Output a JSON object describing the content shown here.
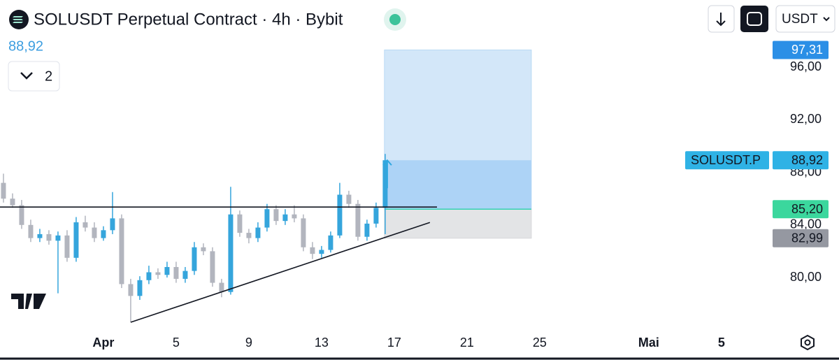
{
  "header": {
    "title": "SOLUSDT Perpetual Contract · 4h · Bybit",
    "price": "88,92",
    "indicators": "2",
    "currency": "USDT"
  },
  "chart_data": {
    "type": "candlestick",
    "x": [
      -4.5,
      -4,
      -3.5,
      -3,
      -2.5,
      -2,
      -1.5,
      -1,
      -0.5,
      0,
      0.5,
      1,
      1.5,
      2,
      2.5,
      3,
      3.5,
      4,
      4.5,
      5,
      5.5,
      6,
      6.5,
      7,
      7.5,
      8,
      8.5,
      9,
      9.5,
      10,
      10.5,
      11,
      11.5,
      12,
      12.5,
      13,
      13.5,
      14,
      14.5,
      15,
      15.5,
      16,
      16.5
    ],
    "open": [
      87.2,
      86.0,
      85.5,
      84.0,
      83.0,
      83.3,
      82.8,
      83.2,
      81.5,
      84.2,
      83.8,
      83.0,
      83.6,
      84.5,
      79.5,
      78.6,
      79.8,
      80.4,
      80.2,
      80.8,
      79.9,
      80.5,
      82.3,
      82.0,
      79.6,
      78.9,
      84.8,
      83.4,
      83.0,
      83.8,
      85.2,
      84.3,
      84.8,
      84.5,
      82.3,
      81.8,
      82.1,
      83.2,
      86.3,
      85.6,
      83.1,
      84.1,
      85.3
    ],
    "high": [
      87.9,
      86.4,
      85.9,
      84.4,
      83.7,
      83.6,
      83.5,
      83.6,
      84.6,
      84.7,
      84.2,
      83.9,
      86.5,
      84.8,
      79.9,
      80.1,
      80.9,
      80.7,
      81.2,
      81.2,
      80.8,
      82.7,
      82.6,
      82.3,
      79.9,
      86.9,
      85.1,
      83.7,
      84.2,
      85.6,
      85.5,
      85.2,
      85.5,
      84.8,
      82.7,
      82.4,
      83.5,
      87.2,
      86.6,
      85.9,
      84.4,
      85.7,
      89.4
    ],
    "low": [
      85.7,
      85.3,
      83.7,
      82.7,
      82.7,
      82.5,
      78.8,
      81.2,
      81.2,
      83.5,
      82.7,
      82.8,
      83.3,
      79.2,
      76.6,
      78.3,
      79.5,
      79.9,
      80.0,
      79.6,
      79.6,
      80.2,
      81.7,
      79.3,
      78.5,
      78.7,
      83.1,
      82.6,
      82.7,
      83.5,
      84.0,
      84.0,
      84.2,
      82.0,
      81.4,
      81.5,
      81.9,
      83.0,
      85.3,
      82.8,
      82.8,
      83.8,
      83.3
    ],
    "close": [
      86.0,
      85.5,
      84.0,
      83.0,
      83.3,
      82.8,
      83.2,
      81.5,
      84.2,
      83.8,
      83.0,
      83.6,
      84.5,
      79.5,
      78.6,
      79.8,
      80.4,
      80.2,
      80.8,
      79.9,
      80.5,
      82.3,
      82.0,
      79.6,
      78.9,
      84.8,
      83.4,
      83.0,
      83.8,
      85.2,
      84.3,
      84.8,
      84.5,
      82.3,
      81.8,
      82.1,
      83.2,
      86.3,
      85.6,
      83.1,
      84.1,
      85.3,
      88.92
    ],
    "up_color": "#35a5dc",
    "down_color": "#b2b5be",
    "xlim": [
      -4.69,
      37.62
    ],
    "ylim": [
      76.12,
      98.45
    ],
    "xticks": [
      {
        "value": 1,
        "label": "Apr"
      },
      5,
      9,
      13,
      17,
      21,
      25,
      {
        "value": 31,
        "label": "Mai"
      },
      {
        "value": 35,
        "label": "5"
      }
    ],
    "yticks": [
      {
        "value": 80,
        "label": "80,00"
      },
      {
        "value": 84,
        "label": "84,00"
      },
      {
        "value": 88,
        "label": "88,00"
      },
      {
        "value": 92,
        "label": "92,00"
      },
      {
        "value": 96,
        "label": "96,00"
      }
    ],
    "lines": [
      {
        "x": [
          -4.69,
          19.35
        ],
        "y": [
          85.36,
          85.36
        ]
      },
      {
        "x": [
          2.5,
          18.96
        ],
        "y": [
          76.6,
          84.19
        ]
      }
    ],
    "position": {
      "x": [
        16.46,
        24.54
      ],
      "target": 97.31,
      "target_label": "97,31",
      "entry": 85.2,
      "entry_label": "85,20",
      "stop": 82.99,
      "stop_label": "82,99"
    },
    "last_price": {
      "name": "SOLUSDT.P",
      "value": 88.92,
      "label": "88,92"
    }
  }
}
